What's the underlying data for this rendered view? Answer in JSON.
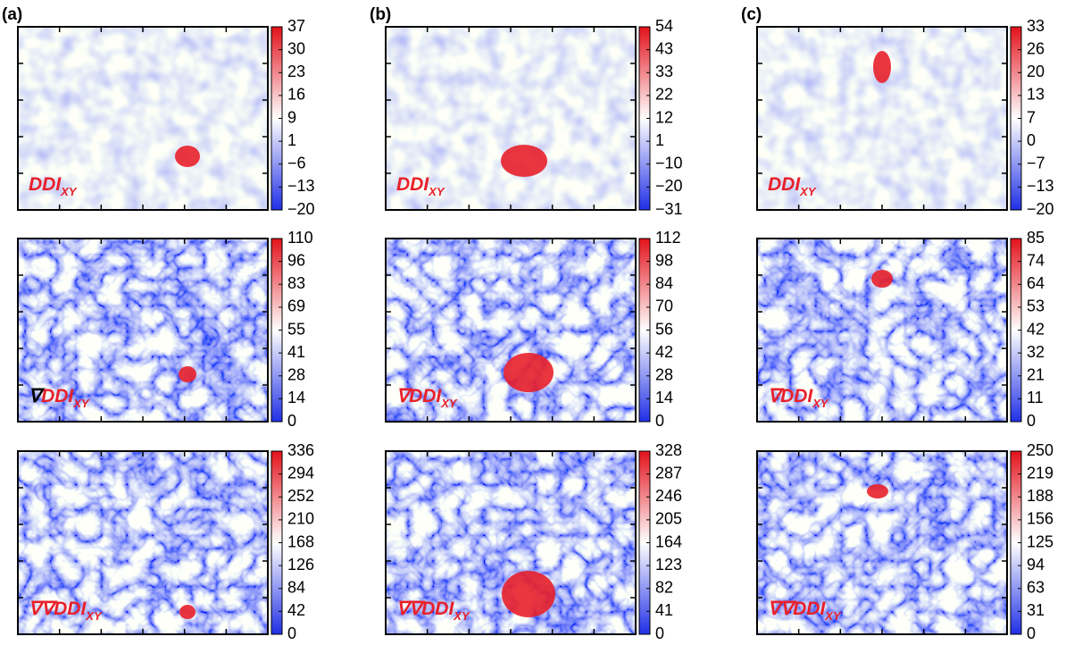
{
  "columns": [
    {
      "label": "(a)",
      "panels": [
        {
          "prefix": "",
          "label": "DDI",
          "subscript": "XY",
          "ticks": [
            "37",
            "30",
            "23",
            "16",
            "9",
            "1",
            "−6",
            "−13",
            "−20"
          ]
        },
        {
          "prefix": "∇",
          "prefix_color": "#000000",
          "label": "DDI",
          "subscript": "XY",
          "ticks": [
            "110",
            "96",
            "83",
            "69",
            "55",
            "41",
            "28",
            "14",
            "0"
          ]
        },
        {
          "prefix": "∇∇",
          "label": "DDI",
          "subscript": "XY",
          "ticks": [
            "336",
            "294",
            "252",
            "210",
            "168",
            "126",
            "84",
            "42",
            "0"
          ]
        }
      ]
    },
    {
      "label": "(b)",
      "panels": [
        {
          "prefix": "",
          "label": "DDI",
          "subscript": "XY",
          "ticks": [
            "54",
            "43",
            "33",
            "22",
            "12",
            "1",
            "−10",
            "−20",
            "−31"
          ]
        },
        {
          "prefix": "∇",
          "label": "DDI",
          "subscript": "XY",
          "ticks": [
            "112",
            "98",
            "84",
            "70",
            "56",
            "42",
            "28",
            "14",
            "0"
          ]
        },
        {
          "prefix": "∇∇",
          "label": "DDI",
          "subscript": "XY",
          "ticks": [
            "328",
            "287",
            "246",
            "205",
            "164",
            "123",
            "82",
            "41",
            "0"
          ]
        }
      ]
    },
    {
      "label": "(c)",
      "panels": [
        {
          "prefix": "",
          "label": "DDI",
          "subscript": "XY",
          "ticks": [
            "33",
            "26",
            "20",
            "13",
            "7",
            "0",
            "−7",
            "−13",
            "−20"
          ]
        },
        {
          "prefix": "∇",
          "label": "DDI",
          "subscript": "XY",
          "ticks": [
            "85",
            "74",
            "64",
            "53",
            "42",
            "32",
            "21",
            "11",
            "0"
          ]
        },
        {
          "prefix": "∇∇",
          "label": "DDI",
          "subscript": "XY",
          "ticks": [
            "250",
            "219",
            "188",
            "156",
            "125",
            "94",
            "63",
            "31",
            "0"
          ]
        }
      ]
    }
  ]
}
